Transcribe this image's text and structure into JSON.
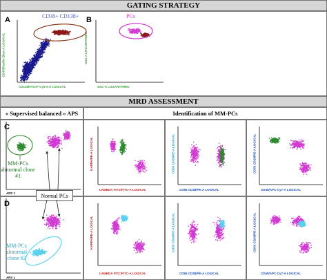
{
  "gating": {
    "title": "GATING STRATEGY",
    "panel_a_letter": "A",
    "panel_b_letter": "B",
    "cd38_cd138_label": "CD38+ CD138+",
    "pcs_label": "PCs",
    "a_ylabel": "CD45/Pacific Blue-A LOGICAL",
    "a_xlabel": "CD138/PerCP-Cy5-5-A LOGICAL",
    "b_ylabel": "SSC-A LOGARITHMIC",
    "b_xlabel": "SSC-A LOGARITHMIC"
  },
  "mrd": {
    "title": "MRD ASSESSMENT",
    "aps_header": "« Supervised balanced » APS",
    "ident_header": "Identification of MM-PCs",
    "row_c_letter": "C",
    "row_d_letter": "D",
    "clone1_label": "MM-PCs abnormal clone #1",
    "clone2_label": "MM-PCs abnormal clone #2",
    "normal_label": "Normal PCs",
    "aps_axis": "APS 1",
    "plot1_ylabel": "KAPPA/PE-A LOGICAL",
    "plot1_xlabel": "LAMBDA FITC/FITC-A LOGICAL",
    "plot2_ylabel": "CD56 CD38/PE-A LOGICAL",
    "plot2_xlabel": "CD56 CD38/PE-A LOGICAL",
    "plot3_ylabel": "CD56 CD38/PE-A LOGICAL",
    "plot3_xlabel": "CD45/APC-Cy7-A LOGICAL"
  },
  "colors": {
    "magenta": "#d23ad2",
    "green": "#2d8a2d",
    "cyan": "#5ad0ee",
    "navy": "#1a1a8c",
    "maroon": "#8b1a1a",
    "axis_red": "#c81e1e",
    "axis_green": "#3aa83a",
    "axis_blue": "#1e50b4"
  }
}
